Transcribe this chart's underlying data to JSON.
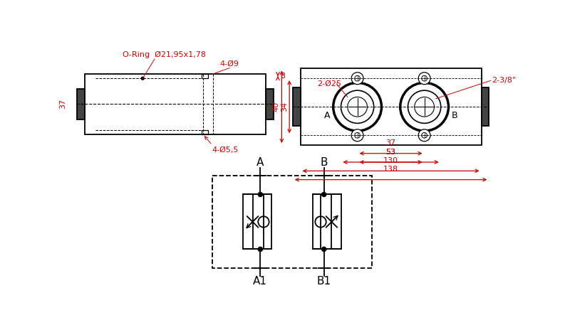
{
  "bg_color": "#ffffff",
  "line_color": "#000000",
  "dim_color": "#cc0000",
  "labels": {
    "oring": "O-Ring  Ø21,95x1,78",
    "hole9": "4-Ø9",
    "hole55": "4-Ø5,5",
    "dim37s": "37",
    "dim8": "8",
    "dim2phi25": "2-Ø25",
    "dim238": "2-3/8\"",
    "dim37f": "37",
    "dim53": "53",
    "dim130": "130",
    "dim138": "138",
    "dim40": "40",
    "dim34": "34",
    "labelA": "A",
    "labelB": "B",
    "labelA1": "A1",
    "labelB1": "B1"
  }
}
